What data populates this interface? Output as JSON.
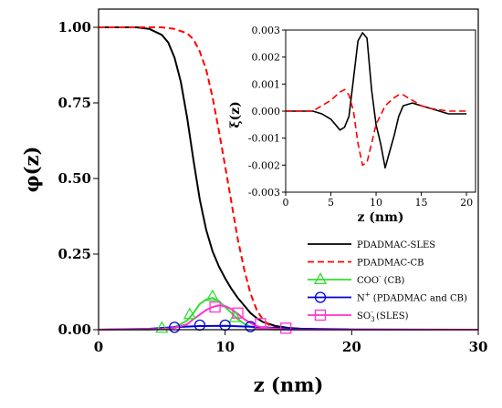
{
  "chart_data": [
    {
      "type": "line",
      "xlabel": "z (nm)",
      "ylabel": "φ(z)",
      "xlim": [
        0,
        30
      ],
      "ylim": [
        0,
        1.0
      ],
      "xticks": [
        "0",
        "10",
        "20",
        "30"
      ],
      "yticks": [
        "0.00",
        "0.25",
        "0.50",
        "0.75",
        "1.00"
      ],
      "legend_position": "bottom-right",
      "series": [
        {
          "name": "PDADMAC-SLES",
          "color": "#000000",
          "style": "solid",
          "marker": "none",
          "x": [
            0,
            3,
            4,
            5,
            5.5,
            6,
            6.5,
            7,
            7.5,
            8,
            8.5,
            9,
            9.5,
            10,
            10.5,
            11,
            11.5,
            12,
            12.5,
            13,
            14,
            15,
            16,
            18,
            20,
            30
          ],
          "y": [
            1.0,
            1.0,
            0.995,
            0.975,
            0.95,
            0.9,
            0.82,
            0.7,
            0.56,
            0.43,
            0.33,
            0.26,
            0.21,
            0.17,
            0.135,
            0.105,
            0.08,
            0.055,
            0.038,
            0.025,
            0.012,
            0.006,
            0.003,
            0.001,
            0.0,
            0.0
          ]
        },
        {
          "name": "PDADMAC-CB",
          "color": "#ff0000",
          "style": "dashed",
          "marker": "none",
          "x": [
            0,
            5,
            6,
            7,
            7.5,
            8,
            8.5,
            9,
            9.5,
            10,
            10.5,
            11,
            11.5,
            12,
            12.5,
            13,
            13.5,
            14,
            15,
            16,
            18,
            30
          ],
          "y": [
            1.0,
            1.0,
            0.995,
            0.98,
            0.96,
            0.92,
            0.86,
            0.77,
            0.66,
            0.54,
            0.42,
            0.3,
            0.2,
            0.12,
            0.065,
            0.032,
            0.015,
            0.007,
            0.002,
            0.0,
            0.0,
            0.0
          ]
        },
        {
          "name": "COO- (CB)",
          "color": "#33dd33",
          "style": "solid",
          "marker": "triangle",
          "x": [
            0,
            4,
            5,
            6,
            7,
            7.5,
            8,
            8.5,
            9,
            9.5,
            10,
            10.5,
            11,
            11.5,
            12,
            12.5,
            13,
            14,
            30
          ],
          "y": [
            0.0,
            0.0,
            0.003,
            0.008,
            0.03,
            0.055,
            0.085,
            0.1,
            0.105,
            0.095,
            0.075,
            0.055,
            0.035,
            0.02,
            0.01,
            0.005,
            0.002,
            0.0,
            0.0
          ],
          "marker_x": [
            5,
            7.2,
            9,
            10.8
          ],
          "marker_y": [
            0.005,
            0.05,
            0.11,
            0.04
          ]
        },
        {
          "name": "N+ (PDADMAC and CB)",
          "color": "#0000dd",
          "style": "solid",
          "marker": "circle",
          "x": [
            0,
            4,
            6,
            8,
            10,
            12,
            14,
            16,
            20,
            30
          ],
          "y": [
            0.0,
            0.003,
            0.008,
            0.012,
            0.013,
            0.01,
            0.006,
            0.003,
            0.001,
            0.0
          ],
          "marker_x": [
            6,
            8,
            10,
            12
          ],
          "marker_y": [
            0.008,
            0.015,
            0.015,
            0.01
          ]
        },
        {
          "name": "SO3- (SLES)",
          "color": "#ff33cc",
          "style": "solid",
          "marker": "square",
          "x": [
            0,
            5,
            6,
            7,
            7.5,
            8,
            8.5,
            9,
            9.5,
            10,
            10.5,
            11,
            11.5,
            12,
            12.5,
            13,
            14,
            15,
            30
          ],
          "y": [
            0.0,
            0.002,
            0.006,
            0.018,
            0.035,
            0.05,
            0.065,
            0.075,
            0.08,
            0.078,
            0.068,
            0.052,
            0.035,
            0.022,
            0.012,
            0.007,
            0.003,
            0.0,
            0.0
          ],
          "marker_x": [
            9.2,
            11,
            12.8,
            14.8
          ],
          "marker_y": [
            0.075,
            0.055,
            0.02,
            0.005
          ]
        }
      ]
    },
    {
      "type": "line",
      "xlabel": "z (nm)",
      "ylabel": "ξ(z)",
      "xlim": [
        0,
        21
      ],
      "ylim": [
        -0.003,
        0.003
      ],
      "xticks": [
        "0",
        "5",
        "10",
        "15",
        "20"
      ],
      "yticks": [
        "0.003",
        "0.002",
        "0.001",
        "0.000",
        "-0.001",
        "-0.002",
        "-0.003"
      ],
      "series": [
        {
          "name": "PDADMAC-SLES",
          "color": "#000000",
          "style": "solid",
          "x": [
            0,
            2,
            3,
            4,
            5,
            5.5,
            6,
            6.5,
            7,
            7.5,
            8,
            8.5,
            9,
            9.5,
            10,
            10.5,
            11,
            11.5,
            12,
            12.5,
            13,
            14,
            15,
            16,
            17,
            18,
            20
          ],
          "y": [
            0.0,
            0.0,
            0.0,
            -0.0001,
            -0.0003,
            -0.0005,
            -0.0007,
            -0.0006,
            -0.0002,
            0.0012,
            0.0026,
            0.0029,
            0.0027,
            0.0008,
            -0.0005,
            -0.0012,
            -0.0021,
            -0.0015,
            -0.0009,
            -0.0002,
            0.0002,
            0.0003,
            0.0002,
            0.0001,
            0.0,
            -0.0001,
            -0.0001
          ]
        },
        {
          "name": "PDADMAC-CB",
          "color": "#ff0000",
          "style": "dashed",
          "x": [
            0,
            3,
            4,
            5,
            6,
            6.5,
            7,
            7.5,
            8,
            8.5,
            9,
            9.5,
            10,
            11,
            12,
            12.5,
            13,
            14,
            15,
            16,
            18,
            20
          ],
          "y": [
            0.0,
            0.0,
            0.0002,
            0.0004,
            0.0007,
            0.0008,
            0.0006,
            0.0,
            -0.0012,
            -0.002,
            -0.0019,
            -0.0012,
            -0.0005,
            0.0002,
            0.0005,
            0.0006,
            0.0006,
            0.0004,
            0.0002,
            0.0001,
            0.0,
            0.0
          ]
        }
      ]
    }
  ],
  "legend": [
    {
      "label": "PDADMAC-SLES",
      "sup": "",
      "tail": ""
    },
    {
      "label": "PDADMAC-CB",
      "sup": "",
      "tail": ""
    },
    {
      "label": "COO",
      "sup": "-",
      "tail": " (CB)"
    },
    {
      "label": "N",
      "sup": "+",
      "tail": " (PDADMAC and CB)"
    },
    {
      "label": "SO",
      "sub": "3",
      "sup": "-",
      "tail": " (SLES)"
    }
  ]
}
